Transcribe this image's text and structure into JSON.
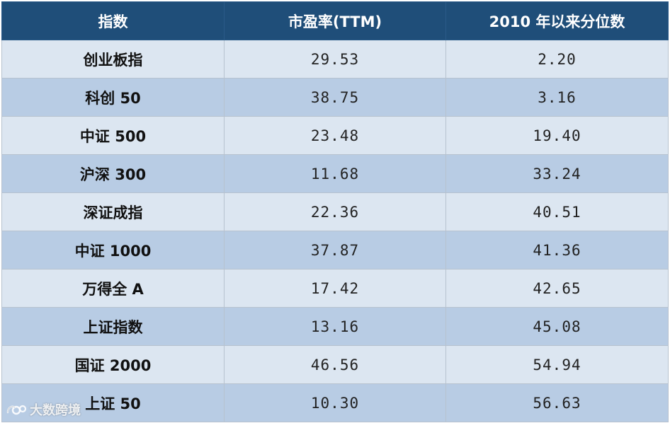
{
  "table": {
    "headers": [
      "指数",
      "市盈率(TTM)",
      "2010 年以来分位数"
    ],
    "rows": [
      {
        "name": "创业板指",
        "pe": "29.53",
        "pct": "2.20"
      },
      {
        "name": "科创 50",
        "pe": "38.75",
        "pct": "3.16"
      },
      {
        "name": "中证 500",
        "pe": "23.48",
        "pct": "19.40"
      },
      {
        "name": "沪深 300",
        "pe": "11.68",
        "pct": "33.24"
      },
      {
        "name": "深证成指",
        "pe": "22.36",
        "pct": "40.51"
      },
      {
        "name": "中证 1000",
        "pe": "37.87",
        "pct": "41.36"
      },
      {
        "name": "万得全 A",
        "pe": "17.42",
        "pct": "42.65"
      },
      {
        "name": "上证指数",
        "pe": "13.16",
        "pct": "45.08"
      },
      {
        "name": "国证 2000",
        "pe": "46.56",
        "pct": "54.94"
      },
      {
        "name": "上证 50",
        "pe": "10.30",
        "pct": "56.63"
      }
    ]
  },
  "watermark": {
    "text": "大数跨境",
    "icon": "brand-logo-icon"
  },
  "colors": {
    "header_bg": "#1f4e79",
    "row_light": "#dce6f1",
    "row_dark": "#b8cce4"
  }
}
